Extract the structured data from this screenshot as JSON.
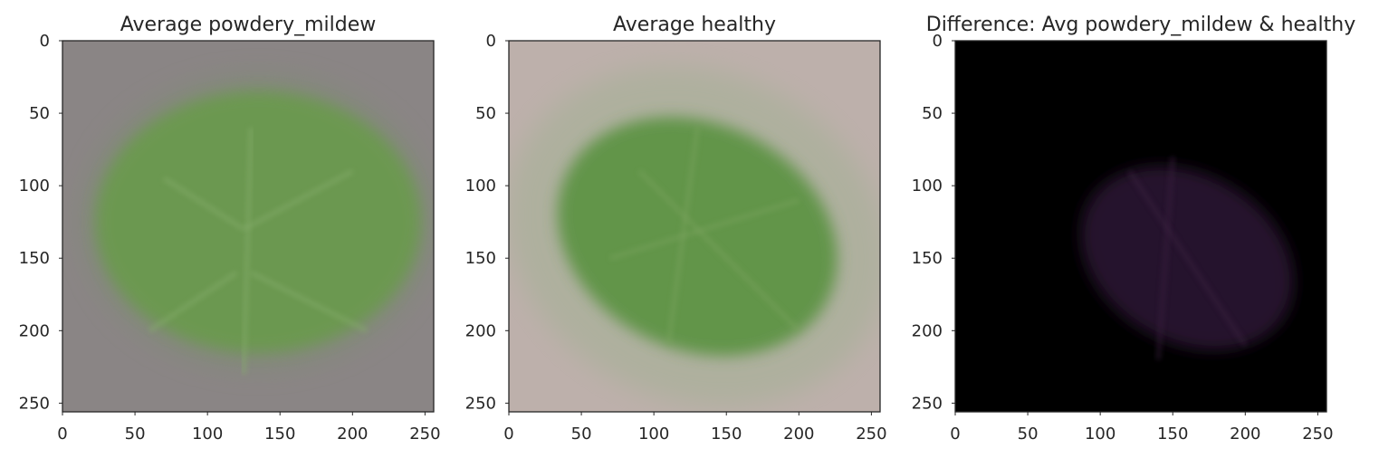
{
  "chart_data": [
    {
      "type": "heatmap",
      "title": "Average powdery_mildew",
      "xlim": [
        0,
        256
      ],
      "ylim": [
        256,
        0
      ],
      "xticks": [
        0,
        50,
        100,
        150,
        200,
        250
      ],
      "yticks": [
        0,
        50,
        100,
        150,
        200,
        250
      ],
      "grid": false,
      "colors": {
        "background": "#8a8585",
        "leaf": "#6a9a4e",
        "vein": "#86ad6c"
      }
    },
    {
      "type": "heatmap",
      "title": "Average healthy",
      "xlim": [
        0,
        256
      ],
      "ylim": [
        256,
        0
      ],
      "xticks": [
        0,
        50,
        100,
        150,
        200,
        250
      ],
      "yticks": [
        0,
        50,
        100,
        150,
        200,
        250
      ],
      "grid": false,
      "colors": {
        "background": "#bdb0ab",
        "leaf": "#5c9342",
        "vein": "#79a35d"
      }
    },
    {
      "type": "heatmap",
      "title": "Difference: Avg powdery_mildew & healthy",
      "xlim": [
        0,
        256
      ],
      "ylim": [
        256,
        0
      ],
      "xticks": [
        0,
        50,
        100,
        150,
        200,
        250
      ],
      "yticks": [
        0,
        50,
        100,
        150,
        200,
        250
      ],
      "grid": false,
      "colors": {
        "background": "#000000",
        "leaf": "#2a1630",
        "vein": "#3a2440"
      }
    }
  ]
}
